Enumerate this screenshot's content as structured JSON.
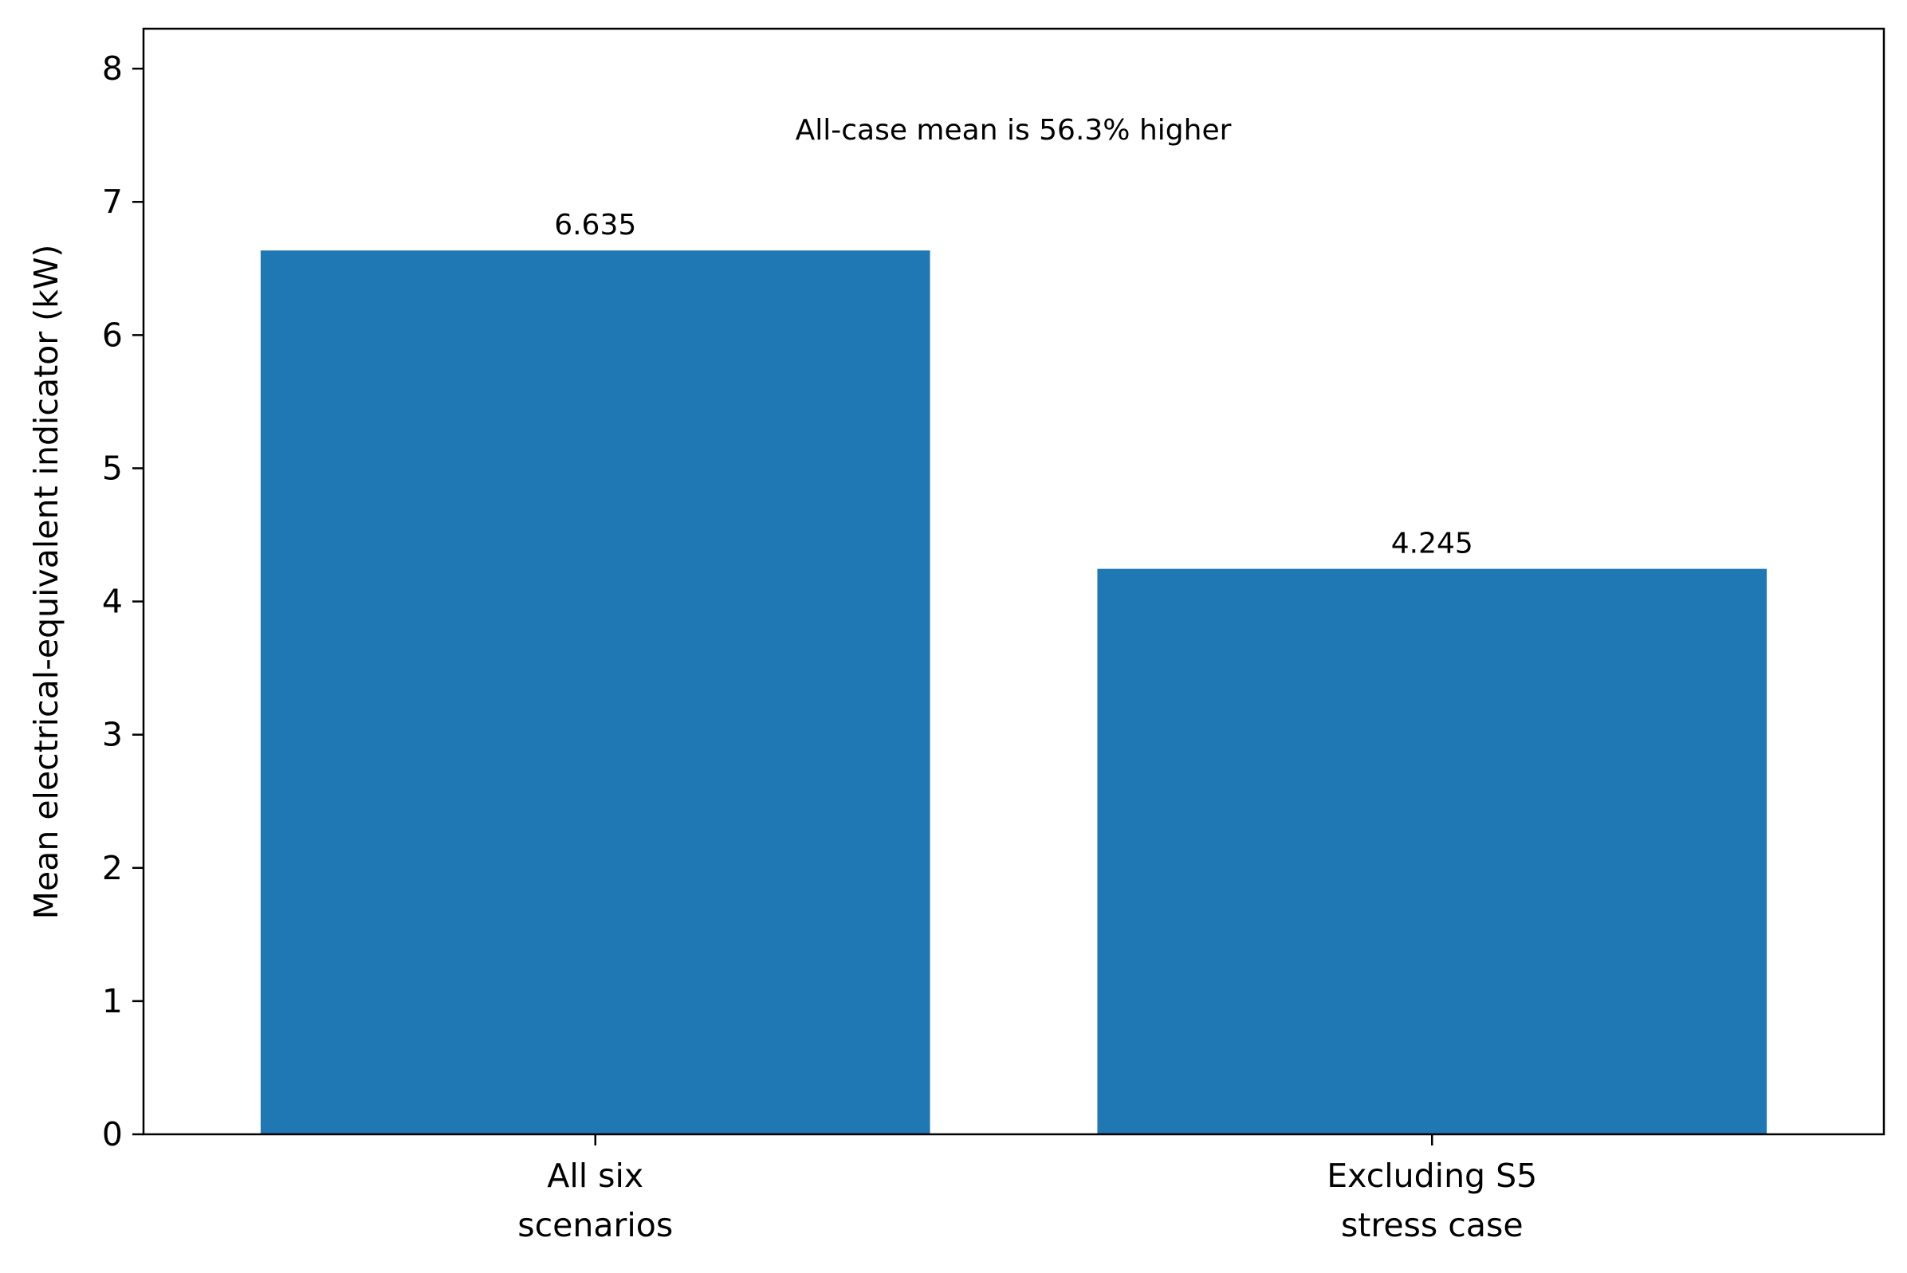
{
  "chart_data": {
    "type": "bar",
    "categories": [
      [
        "All six",
        "scenarios"
      ],
      [
        "Excluding S5",
        "stress case"
      ]
    ],
    "values": [
      6.635,
      4.245
    ],
    "value_labels": [
      "6.635",
      "4.245"
    ],
    "title": "",
    "xlabel": "",
    "ylabel": "Mean electrical-equivalent indicator (kW)",
    "ylim": [
      0,
      8.3
    ],
    "yticks": [
      0,
      1,
      2,
      3,
      4,
      5,
      6,
      7,
      8
    ],
    "annotation": "All-case mean is 56.3% higher",
    "bar_color": "#1f77b4",
    "grid": false,
    "legend": "none"
  }
}
